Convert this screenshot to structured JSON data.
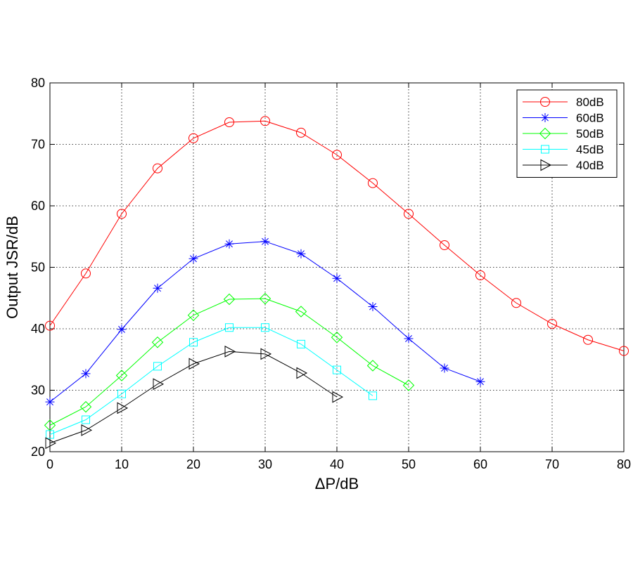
{
  "chart_data": {
    "type": "line",
    "xlabel": "ΔP/dB",
    "ylabel": "Output JSR/dB",
    "xlim": [
      0,
      80
    ],
    "ylim": [
      20,
      80
    ],
    "xticks": [
      0,
      10,
      20,
      30,
      40,
      50,
      60,
      70,
      80
    ],
    "yticks": [
      20,
      30,
      40,
      50,
      60,
      70,
      80
    ],
    "grid": true,
    "legend_position": "top-right",
    "series": [
      {
        "name": "80dB",
        "color": "#ff0000",
        "marker": "circle",
        "x": [
          0,
          5,
          10,
          15,
          20,
          25,
          30,
          35,
          40,
          45,
          50,
          55,
          60,
          65,
          70,
          75,
          80
        ],
        "y": [
          40.5,
          49.0,
          58.7,
          66.1,
          71.0,
          73.6,
          73.8,
          71.9,
          68.3,
          63.7,
          58.7,
          53.6,
          48.7,
          44.2,
          40.8,
          38.2,
          36.4
        ]
      },
      {
        "name": "60dB",
        "color": "#0000ff",
        "marker": "star",
        "x": [
          0,
          5,
          10,
          15,
          20,
          25,
          30,
          35,
          40,
          45,
          50,
          55,
          60
        ],
        "y": [
          28.1,
          32.7,
          39.9,
          46.6,
          51.4,
          53.8,
          54.2,
          52.2,
          48.2,
          43.6,
          38.4,
          33.6,
          31.4
        ]
      },
      {
        "name": "50dB",
        "color": "#00ff00",
        "marker": "diamond",
        "x": [
          0,
          5,
          10,
          15,
          20,
          25,
          30,
          35,
          40,
          45,
          50
        ],
        "y": [
          24.3,
          27.3,
          32.4,
          37.8,
          42.2,
          44.8,
          44.9,
          42.8,
          38.6,
          34.0,
          30.8
        ]
      },
      {
        "name": "45dB",
        "color": "#00ffff",
        "marker": "square",
        "x": [
          0,
          5,
          10,
          15,
          20,
          25,
          30,
          35,
          40,
          45
        ],
        "y": [
          22.8,
          25.2,
          29.4,
          33.9,
          37.8,
          40.2,
          40.2,
          37.5,
          33.3,
          29.1
        ]
      },
      {
        "name": "40dB",
        "color": "#000000",
        "marker": "triangle-right",
        "x": [
          0,
          5,
          10,
          15,
          20,
          25,
          30,
          35,
          40
        ],
        "y": [
          21.4,
          23.5,
          27.1,
          31.0,
          34.3,
          36.3,
          35.9,
          32.8,
          28.9
        ]
      }
    ]
  }
}
